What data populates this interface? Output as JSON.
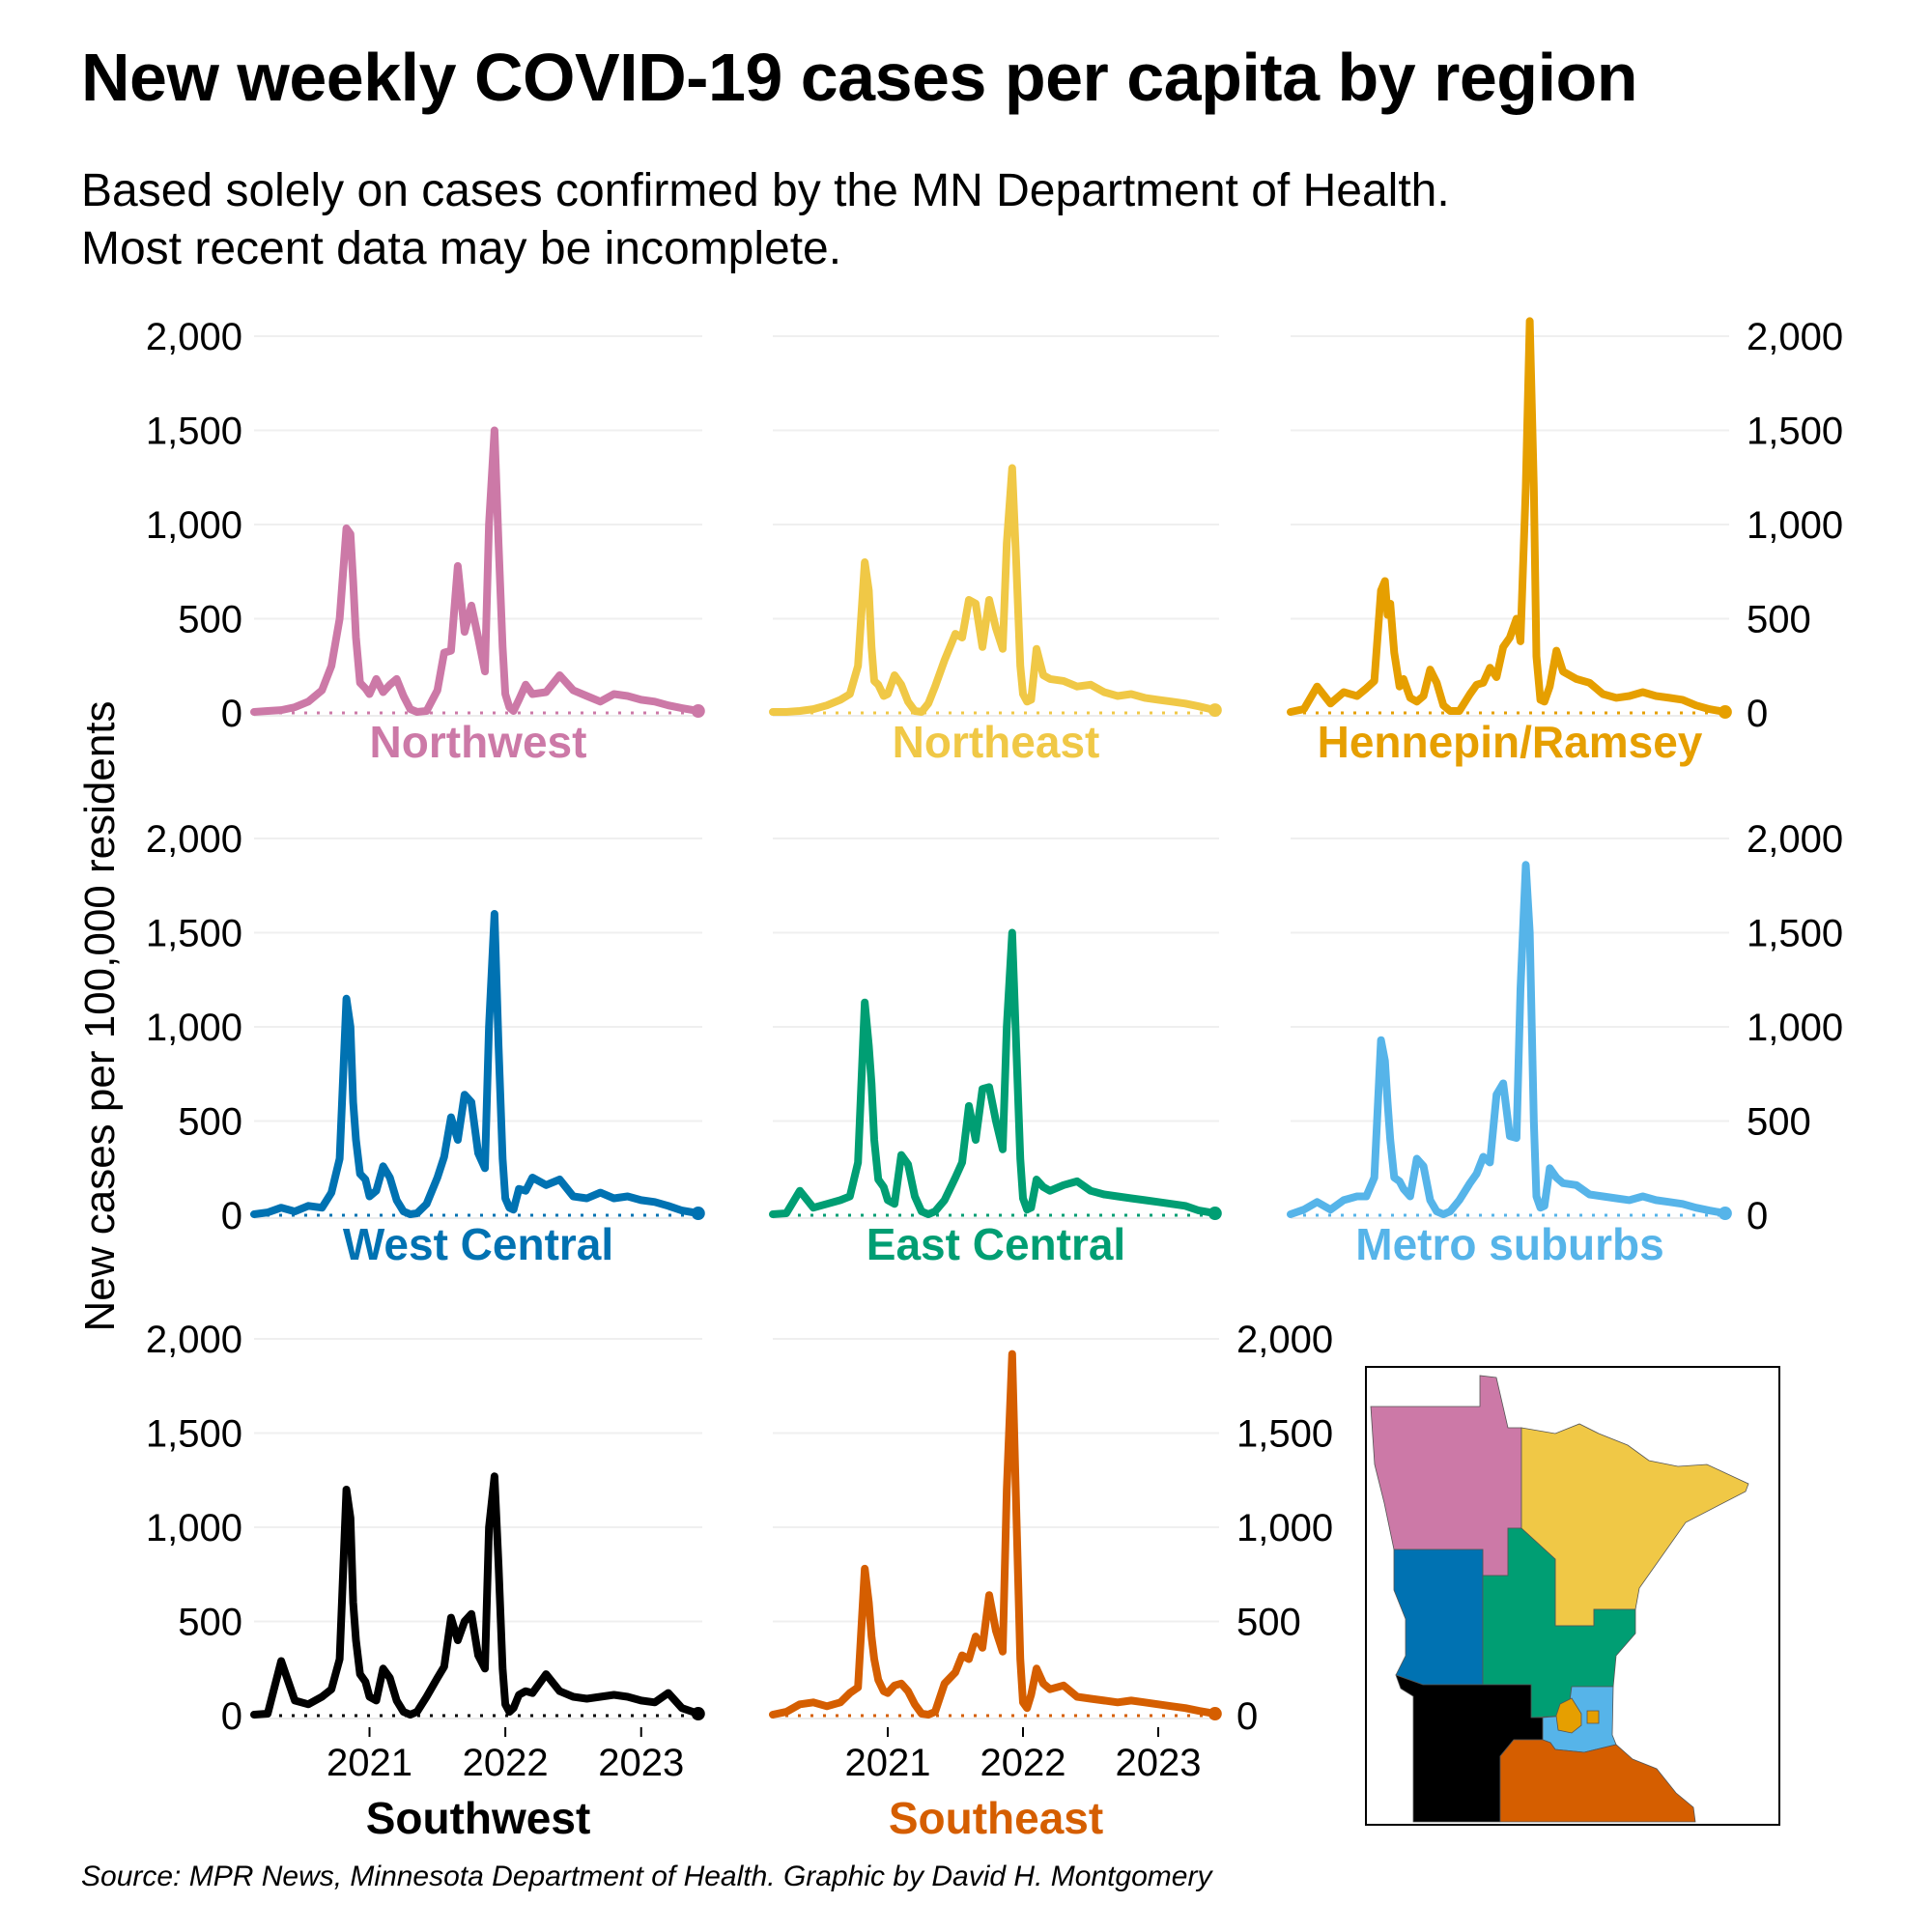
{
  "title": "New weekly COVID-19 cases per capita by region",
  "subtitle_lines": [
    "Based solely on cases confirmed by the MN Department of Health.",
    "Most recent data may be incomplete."
  ],
  "source": "Source: MPR News, Minnesota Department of Health. Graphic by David H. Montgomery",
  "chart_data": {
    "type": "line",
    "title": "New weekly COVID-19 cases per capita by region",
    "ylabel": "New cases per 100,000 residents",
    "xlabel": "",
    "ylim": [
      0,
      2000
    ],
    "xlim": [
      2020.15,
      2023.45
    ],
    "y_ticks": [
      0,
      500,
      1000,
      1500,
      2000
    ],
    "y_tick_labels": [
      "0",
      "500",
      "1,000",
      "1,500",
      "2,000"
    ],
    "x_ticks": [
      2021,
      2022,
      2023
    ],
    "x_tick_labels": [
      "2021",
      "2022",
      "2023"
    ],
    "grid": true,
    "legend": "none (facet labels under each panel; inset map colored by region)",
    "x": [
      2020.15,
      2020.25,
      2020.35,
      2020.45,
      2020.55,
      2020.65,
      2020.72,
      2020.78,
      2020.83,
      2020.86,
      2020.88,
      2020.9,
      2020.93,
      2020.97,
      2021.0,
      2021.05,
      2021.1,
      2021.15,
      2021.2,
      2021.25,
      2021.3,
      2021.35,
      2021.42,
      2021.5,
      2021.55,
      2021.6,
      2021.65,
      2021.7,
      2021.75,
      2021.8,
      2021.85,
      2021.88,
      2021.92,
      2021.95,
      2021.98,
      2022.0,
      2022.03,
      2022.06,
      2022.1,
      2022.15,
      2022.2,
      2022.3,
      2022.4,
      2022.5,
      2022.6,
      2022.7,
      2022.8,
      2022.9,
      2023.0,
      2023.1,
      2023.2,
      2023.3,
      2023.42
    ],
    "series": [
      {
        "name": "Northwest",
        "color": "#CC79A7",
        "row": 0,
        "col": 0,
        "axis": "left",
        "values": [
          5,
          10,
          15,
          30,
          60,
          120,
          250,
          500,
          980,
          950,
          700,
          400,
          160,
          130,
          100,
          180,
          110,
          150,
          180,
          90,
          20,
          5,
          10,
          120,
          320,
          330,
          780,
          430,
          570,
          400,
          220,
          1000,
          1500,
          900,
          350,
          100,
          30,
          10,
          70,
          150,
          100,
          110,
          200,
          120,
          90,
          60,
          100,
          90,
          70,
          60,
          40,
          25,
          10
        ]
      },
      {
        "name": "Northeast",
        "color": "#F0C846",
        "row": 0,
        "col": 1,
        "axis": "none",
        "values": [
          5,
          5,
          10,
          20,
          40,
          70,
          100,
          250,
          800,
          650,
          350,
          170,
          150,
          90,
          100,
          200,
          150,
          60,
          10,
          5,
          50,
          140,
          280,
          420,
          400,
          600,
          580,
          350,
          600,
          450,
          340,
          900,
          1300,
          800,
          250,
          100,
          60,
          70,
          340,
          200,
          180,
          170,
          140,
          150,
          110,
          90,
          100,
          80,
          70,
          60,
          50,
          35,
          15
        ]
      },
      {
        "name": "Hennepin/Ramsey",
        "color": "#E69F00",
        "row": 0,
        "col": 2,
        "axis": "right",
        "values": [
          5,
          20,
          140,
          50,
          110,
          90,
          130,
          170,
          650,
          700,
          520,
          580,
          320,
          140,
          180,
          80,
          60,
          90,
          230,
          160,
          40,
          10,
          10,
          100,
          150,
          160,
          240,
          190,
          350,
          400,
          500,
          380,
          1200,
          2080,
          1200,
          300,
          70,
          60,
          140,
          330,
          220,
          180,
          160,
          100,
          80,
          90,
          110,
          90,
          80,
          70,
          40,
          20,
          5
        ]
      },
      {
        "name": "West Central",
        "color": "#0072B2",
        "row": 1,
        "col": 0,
        "axis": "left",
        "values": [
          5,
          15,
          40,
          20,
          50,
          40,
          120,
          300,
          1150,
          1000,
          600,
          400,
          220,
          190,
          100,
          130,
          260,
          200,
          80,
          20,
          5,
          10,
          60,
          200,
          310,
          520,
          400,
          640,
          600,
          330,
          250,
          1000,
          1600,
          900,
          300,
          90,
          40,
          30,
          140,
          130,
          200,
          160,
          190,
          100,
          90,
          120,
          90,
          100,
          80,
          70,
          50,
          25,
          10
        ]
      },
      {
        "name": "East Central",
        "color": "#009E73",
        "row": 1,
        "col": 1,
        "axis": "none",
        "values": [
          5,
          10,
          130,
          40,
          60,
          80,
          100,
          280,
          1130,
          900,
          700,
          400,
          190,
          150,
          80,
          60,
          320,
          270,
          100,
          20,
          5,
          20,
          80,
          200,
          280,
          580,
          400,
          670,
          680,
          500,
          350,
          1000,
          1500,
          900,
          300,
          90,
          30,
          40,
          190,
          150,
          130,
          160,
          180,
          130,
          110,
          100,
          90,
          80,
          70,
          60,
          50,
          25,
          10
        ]
      },
      {
        "name": "Metro suburbs",
        "color": "#56B4E9",
        "row": 1,
        "col": 2,
        "axis": "right",
        "values": [
          5,
          30,
          70,
          30,
          80,
          100,
          100,
          200,
          930,
          820,
          600,
          400,
          200,
          180,
          140,
          100,
          300,
          260,
          80,
          20,
          5,
          20,
          80,
          170,
          220,
          310,
          280,
          640,
          700,
          420,
          410,
          1200,
          1860,
          1500,
          500,
          100,
          40,
          50,
          250,
          200,
          170,
          160,
          110,
          100,
          90,
          80,
          100,
          80,
          70,
          60,
          40,
          25,
          10
        ]
      },
      {
        "name": "Southwest",
        "color": "#000000",
        "row": 2,
        "col": 0,
        "axis": "left",
        "values": [
          5,
          10,
          290,
          80,
          60,
          100,
          140,
          300,
          1200,
          1050,
          600,
          400,
          220,
          180,
          100,
          80,
          250,
          200,
          80,
          20,
          5,
          20,
          100,
          200,
          260,
          520,
          400,
          500,
          540,
          320,
          250,
          1000,
          1270,
          800,
          250,
          60,
          20,
          40,
          110,
          130,
          120,
          220,
          130,
          100,
          90,
          100,
          110,
          100,
          80,
          70,
          120,
          40,
          10
        ]
      },
      {
        "name": "Southeast",
        "color": "#D55E00",
        "row": 2,
        "col": 1,
        "axis": "right",
        "values": [
          5,
          20,
          60,
          70,
          50,
          70,
          120,
          150,
          780,
          600,
          420,
          300,
          190,
          130,
          120,
          160,
          170,
          130,
          60,
          10,
          5,
          20,
          170,
          230,
          320,
          300,
          420,
          360,
          640,
          450,
          340,
          1200,
          1920,
          1100,
          300,
          70,
          40,
          110,
          250,
          170,
          140,
          160,
          100,
          90,
          80,
          70,
          80,
          70,
          60,
          50,
          40,
          25,
          10
        ]
      }
    ]
  },
  "map": {
    "label": "Minnesota regions inset map",
    "regions": [
      {
        "name": "Northwest",
        "color": "#CC79A7"
      },
      {
        "name": "Northeast",
        "color": "#F0C846"
      },
      {
        "name": "Hennepin/Ramsey",
        "color": "#E69F00"
      },
      {
        "name": "West Central",
        "color": "#0072B2"
      },
      {
        "name": "East Central",
        "color": "#009E73"
      },
      {
        "name": "Metro suburbs",
        "color": "#56B4E9"
      },
      {
        "name": "Southwest",
        "color": "#000000"
      },
      {
        "name": "Southeast",
        "color": "#D55E00"
      }
    ]
  }
}
